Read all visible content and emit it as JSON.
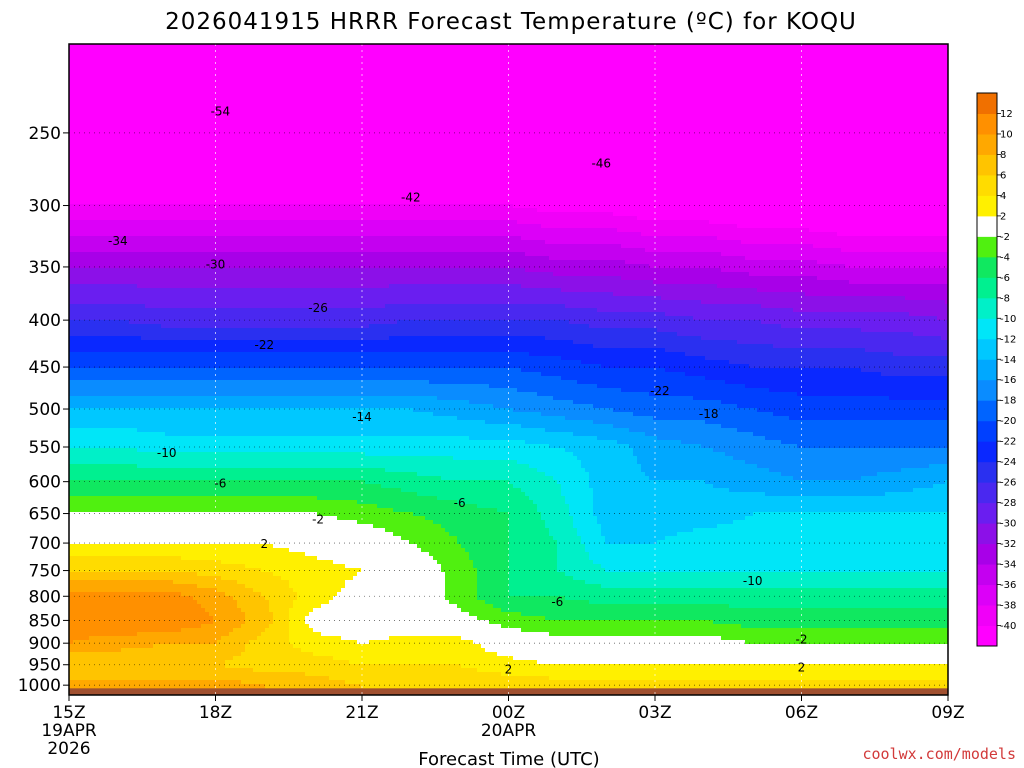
{
  "chart_data": {
    "type": "heatmap",
    "title": "2026041915 HRRR Forecast Temperature (ºC) for KOQU",
    "xlabel": "Forecast Time (UTC)",
    "ylabel": "",
    "credit": "coolwx.com/models",
    "y_scale": "log",
    "y_inverted": true,
    "ylim": [
      1025,
      200
    ],
    "xlim": [
      0,
      18
    ],
    "x_ticks": [
      {
        "hour": 0,
        "lines": [
          "15Z",
          "19APR",
          "2026"
        ]
      },
      {
        "hour": 3,
        "lines": [
          "18Z"
        ]
      },
      {
        "hour": 6,
        "lines": [
          "21Z"
        ]
      },
      {
        "hour": 9,
        "lines": [
          "00Z",
          "20APR"
        ]
      },
      {
        "hour": 12,
        "lines": [
          "03Z"
        ]
      },
      {
        "hour": 15,
        "lines": [
          "06Z"
        ]
      },
      {
        "hour": 18,
        "lines": [
          "09Z"
        ]
      }
    ],
    "y_ticks": [
      250,
      300,
      350,
      400,
      450,
      500,
      550,
      600,
      650,
      700,
      750,
      800,
      850,
      900,
      950,
      1000
    ],
    "grid": true,
    "colorbar": {
      "placement": "right",
      "levels": [
        -42,
        -40,
        -38,
        -36,
        -34,
        -32,
        -30,
        -28,
        -26,
        -24,
        -22,
        -20,
        -18,
        -16,
        -14,
        -12,
        -10,
        -8,
        -6,
        -4,
        -2,
        2,
        4,
        6,
        8,
        10,
        12,
        14
      ],
      "labels": [
        "-40",
        "-38",
        "-36",
        "-34",
        "-32",
        "-30",
        "-28",
        "-26",
        "-24",
        "-22",
        "-20",
        "-18",
        "-16",
        "-14",
        "-12",
        "-10",
        "-8",
        "-6",
        "-4",
        "-2",
        "2",
        "4",
        "6",
        "8",
        "10",
        "12"
      ],
      "colors": [
        "#ff00ff",
        "#f000f8",
        "#dc00f8",
        "#c400f0",
        "#a800e8",
        "#8c10e8",
        "#6a1ef0",
        "#4a28f0",
        "#2a30f0",
        "#0a28ff",
        "#0040ff",
        "#0064ff",
        "#0a8cff",
        "#00a8ff",
        "#00c8ff",
        "#00e6f8",
        "#00f0c8",
        "#00f090",
        "#10e860",
        "#50f010",
        "#ffffff",
        "#fff000",
        "#ffdc00",
        "#ffc400",
        "#ffa800",
        "#ff9000",
        "#f07000"
      ]
    },
    "ground_color": "#a05030",
    "profile_pressures": [
      1000,
      950,
      900,
      850,
      800,
      750,
      700,
      650,
      600,
      550,
      500,
      450,
      400,
      350,
      300,
      250,
      200
    ],
    "series": [
      {
        "x": 0,
        "values": [
          9,
          6,
          10,
          11,
          11,
          6,
          2,
          -2,
          -6,
          -10,
          -14,
          -20,
          -26,
          -32,
          -40,
          -50,
          -55
        ]
      },
      {
        "x": 1,
        "values": [
          9,
          6,
          9,
          12,
          11,
          6,
          2,
          -2,
          -6,
          -10,
          -14,
          -20,
          -26,
          -32,
          -40,
          -50,
          -56
        ]
      },
      {
        "x": 2,
        "values": [
          9,
          6,
          8,
          12,
          11,
          6,
          2,
          -2,
          -6,
          -11,
          -14,
          -20,
          -27,
          -32,
          -40,
          -50,
          -56
        ]
      },
      {
        "x": 3,
        "values": [
          9,
          6,
          8,
          10,
          9,
          5,
          2,
          -2,
          -6,
          -11,
          -14,
          -20,
          -27,
          -32,
          -40,
          -50,
          -56
        ]
      },
      {
        "x": 4,
        "values": [
          8,
          5,
          5,
          7,
          6,
          4,
          2,
          -2,
          -6,
          -11,
          -14,
          -20,
          -27,
          -32,
          -40,
          -49,
          -55
        ]
      },
      {
        "x": 5,
        "values": [
          7,
          5,
          3,
          1,
          3,
          3,
          1,
          -2,
          -6,
          -11,
          -14,
          -20,
          -27,
          -32,
          -40,
          -49,
          -55
        ]
      },
      {
        "x": 6,
        "values": [
          6,
          4,
          2,
          0,
          1,
          2,
          0,
          -3,
          -6,
          -11,
          -14,
          -20,
          -27,
          -32,
          -40,
          -48,
          -55
        ]
      },
      {
        "x": 7,
        "values": [
          5,
          4,
          3,
          0,
          0,
          0,
          -2,
          -4,
          -7,
          -11,
          -14,
          -20,
          -26,
          -32,
          -40,
          -48,
          -54
        ]
      },
      {
        "x": 8,
        "values": [
          5,
          4,
          3,
          -1,
          -3,
          -3,
          -4,
          -5,
          -8,
          -11,
          -15,
          -20,
          -26,
          -32,
          -40,
          -47,
          -53
        ]
      },
      {
        "x": 9,
        "values": [
          5,
          3,
          0,
          -3,
          -6,
          -6,
          -6,
          -6,
          -8,
          -11,
          -16,
          -20,
          -26,
          -32,
          -40,
          -46,
          -52
        ]
      },
      {
        "x": 10,
        "values": [
          5,
          2,
          -1,
          -4,
          -6,
          -8,
          -8,
          -9,
          -10,
          -12,
          -17,
          -21,
          -26,
          -33,
          -41,
          -46,
          -52
        ]
      },
      {
        "x": 11,
        "values": [
          5,
          2,
          -1,
          -4,
          -7,
          -10,
          -12,
          -13,
          -13,
          -13,
          -18,
          -22,
          -27,
          -33,
          -41,
          -46,
          -52
        ]
      },
      {
        "x": 12,
        "values": [
          5,
          2,
          -1,
          -4,
          -7,
          -10,
          -12,
          -13,
          -14,
          -15,
          -19,
          -22,
          -27,
          -34,
          -42,
          -46,
          -52
        ]
      },
      {
        "x": 13,
        "values": [
          5,
          2,
          -1,
          -4,
          -7,
          -10,
          -11,
          -13,
          -14,
          -16,
          -19,
          -23,
          -28,
          -34,
          -42,
          -46,
          -52
        ]
      },
      {
        "x": 14,
        "values": [
          5,
          2,
          -2,
          -5,
          -7,
          -10,
          -11,
          -12,
          -15,
          -17,
          -20,
          -24,
          -28,
          -35,
          -43,
          -47,
          -52
        ]
      },
      {
        "x": 15,
        "values": [
          5,
          2,
          -2,
          -5,
          -7,
          -10,
          -11,
          -12,
          -16,
          -18,
          -21,
          -24,
          -29,
          -35,
          -43,
          -47,
          -52
        ]
      },
      {
        "x": 16,
        "values": [
          5,
          2,
          -2,
          -5,
          -7,
          -10,
          -11,
          -12,
          -16,
          -18,
          -21,
          -24,
          -29,
          -36,
          -44,
          -48,
          -53
        ]
      },
      {
        "x": 17,
        "values": [
          5,
          2,
          -2,
          -5,
          -7,
          -10,
          -11,
          -12,
          -15,
          -18,
          -21,
          -25,
          -29,
          -36,
          -44,
          -48,
          -53
        ]
      },
      {
        "x": 18,
        "values": [
          5,
          2,
          -2,
          -5,
          -7,
          -10,
          -11,
          -12,
          -14,
          -18,
          -21,
          -25,
          -30,
          -36,
          -44,
          -48,
          -53
        ]
      }
    ],
    "contour_labels": [
      {
        "text": "-54",
        "x": 3.1,
        "p": 237
      },
      {
        "text": "-46",
        "x": 10.9,
        "p": 270
      },
      {
        "text": "-42",
        "x": 7.0,
        "p": 294
      },
      {
        "text": "-34",
        "x": 1.0,
        "p": 328
      },
      {
        "text": "-30",
        "x": 3.0,
        "p": 348
      },
      {
        "text": "-26",
        "x": 5.1,
        "p": 388
      },
      {
        "text": "-22",
        "x": 4.0,
        "p": 426
      },
      {
        "text": "-22",
        "x": 12.1,
        "p": 478
      },
      {
        "text": "-18",
        "x": 13.1,
        "p": 506
      },
      {
        "text": "-14",
        "x": 6.0,
        "p": 510
      },
      {
        "text": "-10",
        "x": 2.0,
        "p": 558
      },
      {
        "text": "-10",
        "x": 14.0,
        "p": 770
      },
      {
        "text": "-6",
        "x": 3.1,
        "p": 603
      },
      {
        "text": "-6",
        "x": 8.0,
        "p": 633
      },
      {
        "text": "-6",
        "x": 10.0,
        "p": 812
      },
      {
        "text": "-2",
        "x": 5.1,
        "p": 660
      },
      {
        "text": "2",
        "x": 4.0,
        "p": 702
      },
      {
        "text": "2",
        "x": 9.0,
        "p": 962
      },
      {
        "text": "2",
        "x": 15.0,
        "p": 957
      },
      {
        "text": "-2",
        "x": 15.0,
        "p": 892
      }
    ]
  }
}
